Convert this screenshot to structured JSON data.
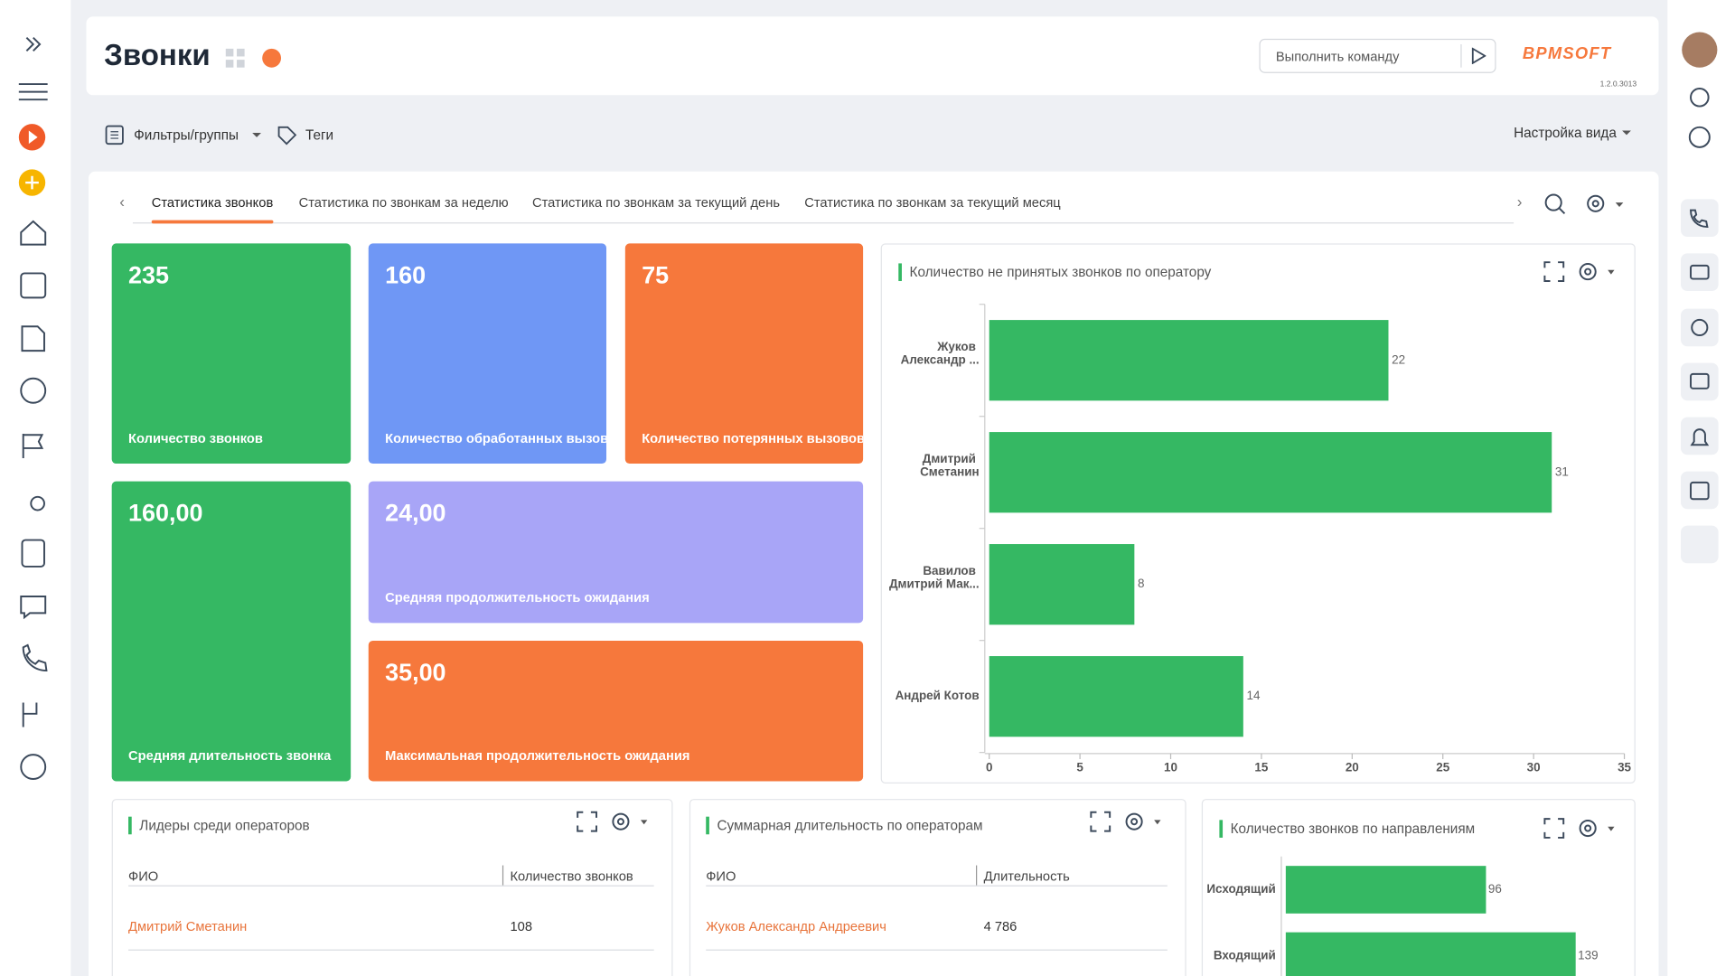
{
  "header": {
    "title": "Звонки",
    "command_placeholder": "Выполнить команду",
    "logo": "BPMSOFT",
    "version": "1.2.0.3013"
  },
  "toolbar": {
    "filters": "Фильтры/группы",
    "tags": "Теги",
    "view_settings": "Настройка вида"
  },
  "tabs": {
    "items": [
      "Статистика звонков",
      "Статистика по звонкам за неделю",
      "Статистика по звонкам за текущий день",
      "Статистика по звонкам за текущий месяц"
    ],
    "active": 0
  },
  "tiles": [
    {
      "value": "235",
      "label": "Количество звонков"
    },
    {
      "value": "160",
      "label": "Количество обработанных вызовов"
    },
    {
      "value": "75",
      "label": "Количество потерянных вызовов"
    },
    {
      "value": "160,00",
      "label": "Средняя длительность звонка"
    },
    {
      "value": "24,00",
      "label": "Средняя продолжительность ожидания"
    },
    {
      "value": "35,00",
      "label": "Максимальная продолжительность ожидания"
    }
  ],
  "tables": [
    {
      "title": "Лидеры среди операторов",
      "columns": [
        "ФИО",
        "Количество звонков"
      ],
      "rows": [
        [
          "Дмитрий Сметанин",
          "108"
        ]
      ]
    },
    {
      "title": "Суммарная длительность по операторам",
      "columns": [
        "ФИО",
        "Длительность"
      ],
      "rows": [
        [
          "Жуков Александр Андреевич",
          "4 786"
        ]
      ]
    }
  ],
  "chart_data": [
    {
      "type": "bar",
      "orientation": "horizontal",
      "title": "Количество не принятых звонков по оператору",
      "categories": [
        "Жуков Александр ...",
        "Дмитрий Сметанин",
        "Вавилов Дмитрий Мак...",
        "Андрей Котов"
      ],
      "values": [
        22,
        31,
        8,
        14
      ],
      "color": "#35b863",
      "xlim": [
        0,
        35
      ],
      "xticks": [
        0,
        5,
        10,
        15,
        20,
        25,
        30,
        35
      ]
    },
    {
      "type": "bar",
      "orientation": "horizontal",
      "title": "Количество звонков по направлениям",
      "categories": [
        "Исходящий",
        "Входящий"
      ],
      "values": [
        96,
        139
      ],
      "color": "#35b863"
    }
  ]
}
